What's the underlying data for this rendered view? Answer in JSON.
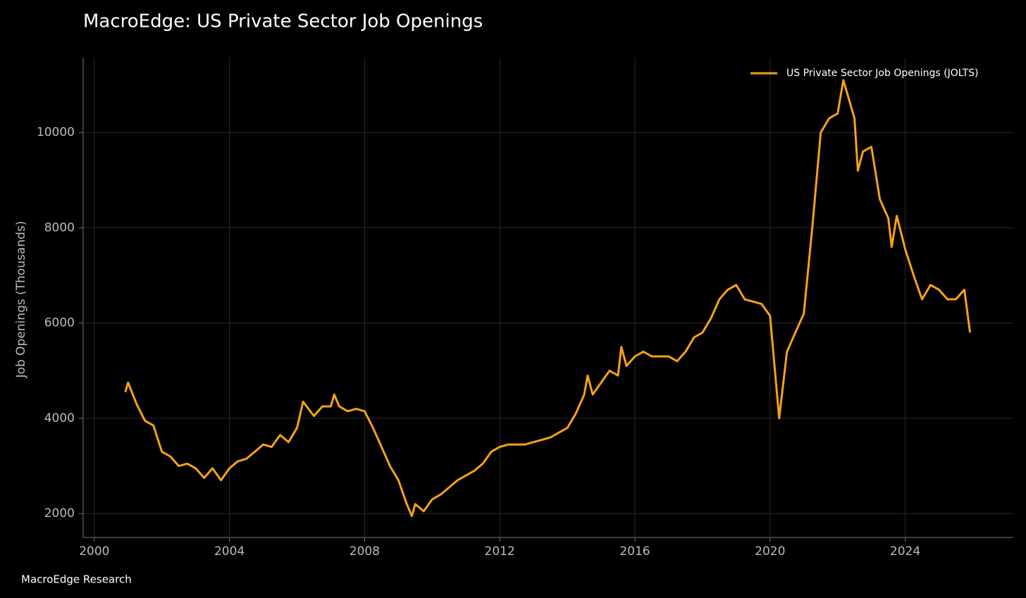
{
  "chart_data": {
    "type": "line",
    "title": "MacroEdge: US Private Sector Job Openings",
    "y_label": "Job Openings (Thousands)",
    "source": "MacroEdge Research",
    "legend_position": "upper right",
    "grid": true,
    "xlim": [
      1999.67,
      2027.2
    ],
    "xticks": [
      2000,
      2004,
      2008,
      2012,
      2016,
      2020,
      2024
    ],
    "ylim": [
      1500,
      11570
    ],
    "yticks": [
      2000,
      4000,
      6000,
      8000,
      10000
    ],
    "x": [
      2000.92,
      2001.0,
      2001.25,
      2001.5,
      2001.75,
      2002.0,
      2002.25,
      2002.5,
      2002.75,
      2003.0,
      2003.25,
      2003.5,
      2003.75,
      2004.0,
      2004.25,
      2004.5,
      2004.75,
      2005.0,
      2005.25,
      2005.5,
      2005.75,
      2006.0,
      2006.18,
      2006.5,
      2006.75,
      2007.0,
      2007.1,
      2007.25,
      2007.5,
      2007.75,
      2008.0,
      2008.25,
      2008.5,
      2008.75,
      2009.0,
      2009.25,
      2009.4,
      2009.5,
      2009.75,
      2010.0,
      2010.25,
      2010.5,
      2010.75,
      2011.0,
      2011.25,
      2011.5,
      2011.75,
      2012.0,
      2012.25,
      2012.5,
      2012.75,
      2013.0,
      2013.25,
      2013.5,
      2013.75,
      2014.0,
      2014.25,
      2014.5,
      2014.6,
      2014.75,
      2015.0,
      2015.25,
      2015.5,
      2015.6,
      2015.75,
      2016.0,
      2016.25,
      2016.5,
      2016.75,
      2017.0,
      2017.25,
      2017.5,
      2017.75,
      2018.0,
      2018.25,
      2018.5,
      2018.75,
      2019.0,
      2019.25,
      2019.5,
      2019.75,
      2020.0,
      2020.27,
      2020.5,
      2020.75,
      2021.0,
      2021.25,
      2021.5,
      2021.75,
      2022.0,
      2022.17,
      2022.5,
      2022.6,
      2022.75,
      2023.0,
      2023.25,
      2023.5,
      2023.6,
      2023.75,
      2024.0,
      2024.25,
      2024.5,
      2024.75,
      2025.0,
      2025.25,
      2025.5,
      2025.75,
      2025.92
    ],
    "series": [
      {
        "name": "US Private Sector Job Openings (JOLTS)",
        "color": "#f5a11c",
        "values": [
          4550,
          4750,
          4300,
          3950,
          3850,
          3300,
          3200,
          3000,
          3050,
          2950,
          2750,
          2950,
          2700,
          2950,
          3100,
          3150,
          3300,
          3450,
          3400,
          3650,
          3500,
          3800,
          4350,
          4050,
          4250,
          4250,
          4500,
          4250,
          4150,
          4200,
          4150,
          3800,
          3400,
          3000,
          2700,
          2200,
          1950,
          2200,
          2050,
          2300,
          2400,
          2550,
          2700,
          2800,
          2900,
          3050,
          3300,
          3400,
          3450,
          3450,
          3450,
          3500,
          3550,
          3600,
          3700,
          3800,
          4100,
          4500,
          4900,
          4500,
          4750,
          5000,
          4900,
          5500,
          5100,
          5300,
          5400,
          5300,
          5300,
          5300,
          5200,
          5400,
          5700,
          5800,
          6100,
          6500,
          6700,
          6800,
          6500,
          6450,
          6400,
          6150,
          4000,
          5400,
          5800,
          6200,
          8000,
          10000,
          10300,
          10400,
          11100,
          10300,
          9200,
          9600,
          9700,
          8600,
          8200,
          7600,
          8250,
          7550,
          7000,
          6500,
          6800,
          6700,
          6500,
          6500,
          6700,
          5800
        ]
      }
    ]
  }
}
